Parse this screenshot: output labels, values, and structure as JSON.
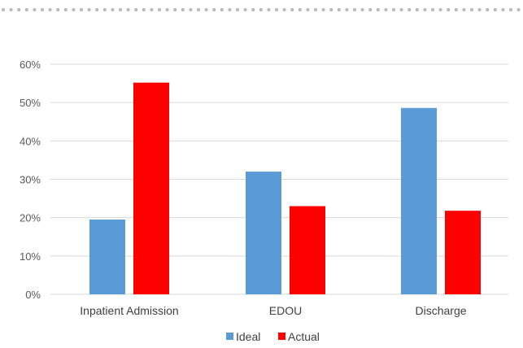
{
  "chart_data": {
    "type": "bar",
    "title": "",
    "xlabel": "",
    "ylabel": "",
    "categories": [
      "Inpatient Admission",
      "EDOU",
      "Discharge"
    ],
    "series": [
      {
        "name": "Ideal",
        "color": "#5b9bd5",
        "values": [
          19.5,
          32,
          48.6
        ]
      },
      {
        "name": "Actual",
        "color": "#ff0000",
        "values": [
          55.2,
          23,
          21.8
        ]
      }
    ],
    "ylim": [
      0,
      60
    ],
    "yticks": [
      0,
      10,
      20,
      30,
      40,
      50,
      60
    ],
    "ytick_labels": [
      "0%",
      "10%",
      "20%",
      "30%",
      "40%",
      "50%",
      "60%"
    ],
    "grid": true,
    "legend_position": "bottom"
  },
  "colors": {
    "ideal": "#5b9bd5",
    "actual": "#ff0000",
    "grid": "#d9d9d9",
    "dots": "#b8b8b8"
  }
}
